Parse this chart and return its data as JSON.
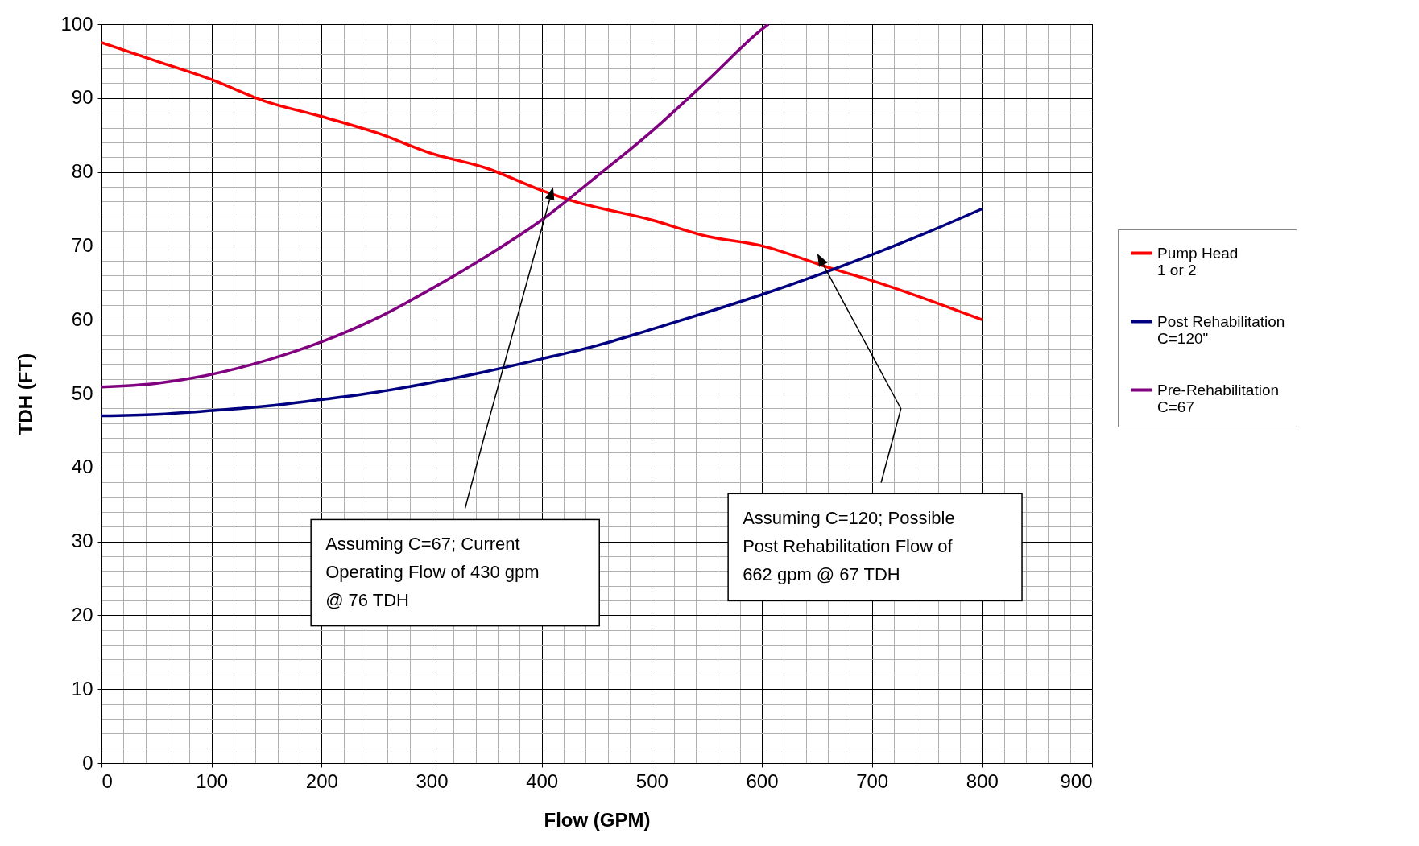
{
  "chart_data": {
    "type": "line",
    "xlabel": "Flow (GPM)",
    "ylabel": "TDH (FT)",
    "xlim": [
      0,
      900
    ],
    "xticks": [
      0,
      100,
      200,
      300,
      400,
      500,
      600,
      700,
      800,
      900
    ],
    "ylim": [
      0,
      100
    ],
    "yticks": [
      0,
      10,
      20,
      30,
      40,
      50,
      60,
      70,
      80,
      90,
      100
    ],
    "grid": true,
    "legend": "right",
    "marker": "none",
    "line_style": "solid",
    "series": [
      {
        "name": "Pump Head\n1 or 2",
        "color": "#ff0000",
        "x": [
          0,
          50,
          100,
          150,
          200,
          250,
          300,
          350,
          400,
          430,
          500,
          550,
          600,
          662,
          700,
          800
        ],
        "values": [
          97.5,
          95,
          92.5,
          89.5,
          87.5,
          85.3,
          82.5,
          80.5,
          77.5,
          76,
          73.5,
          71.3,
          70,
          67,
          65.3,
          60
        ]
      },
      {
        "name": "Post Rehabilitation\nC=120\"",
        "color": "#000080",
        "x": [
          0,
          50,
          100,
          150,
          200,
          250,
          300,
          350,
          400,
          450,
          500,
          550,
          600,
          650,
          700,
          750,
          800
        ],
        "values": [
          47,
          47.2,
          47.7,
          48.3,
          49.2,
          50.2,
          51.5,
          53,
          54.7,
          56.5,
          58.7,
          61,
          63.4,
          66,
          68.8,
          71.8,
          75
        ]
      },
      {
        "name": "Pre-Rehabilitation\nC=67",
        "color": "#800080",
        "x": [
          0,
          50,
          100,
          150,
          200,
          250,
          300,
          350,
          400,
          450,
          500,
          550,
          600,
          606
        ],
        "values": [
          50.9,
          51.4,
          52.6,
          54.5,
          57,
          60.2,
          64.2,
          68.6,
          73.5,
          79.4,
          85.5,
          92.3,
          99.3,
          100
        ]
      }
    ],
    "annotations": [
      "Assuming C=67; Current\nOperating Flow of 430 gpm\n@ 76 TDH",
      "Assuming C=120; Possible\nPost Rehabilitation Flow of\n662 gpm @ 67 TDH"
    ]
  }
}
